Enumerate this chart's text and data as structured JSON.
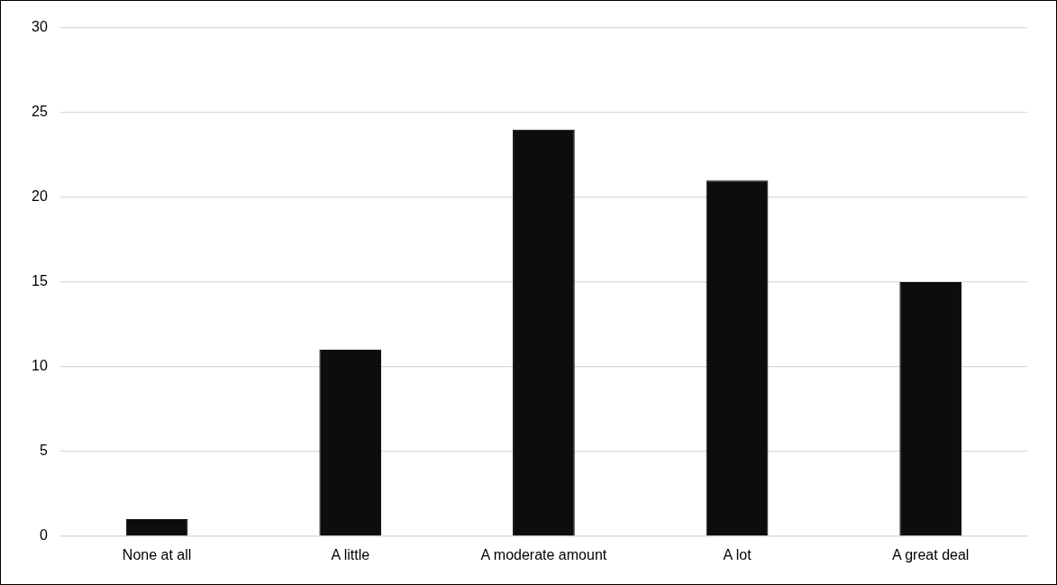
{
  "chart_data": {
    "type": "bar",
    "categories": [
      "None at all",
      "A little",
      "A moderate amount",
      "A lot",
      "A great deal"
    ],
    "values": [
      1,
      11,
      24,
      21,
      15
    ],
    "color": "#0d0d0d",
    "ylim": [
      0,
      30
    ],
    "yticks": [
      0,
      5,
      10,
      15,
      20,
      25,
      30
    ],
    "grid": "y"
  }
}
